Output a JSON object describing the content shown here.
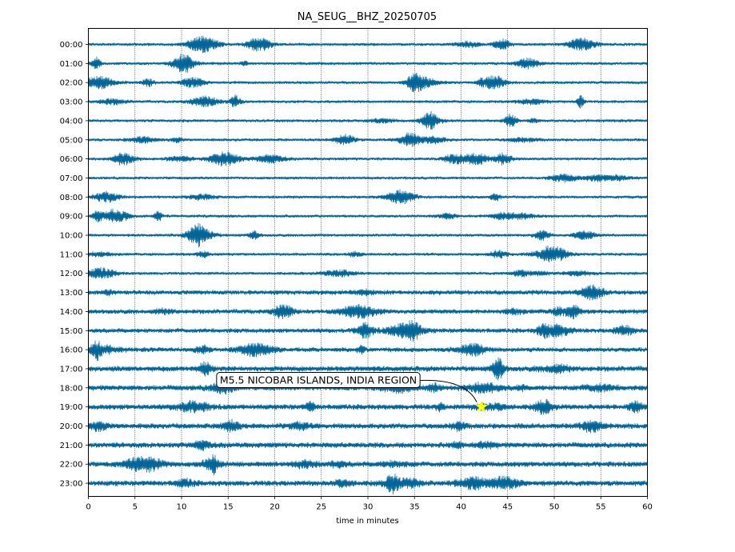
{
  "chart_data": {
    "type": "line",
    "title": "NA_SEUG__BHZ_20250705",
    "xlabel": "time in minutes",
    "ylabel": "",
    "xlim": [
      0,
      60
    ],
    "x_ticks": [
      0,
      5,
      10,
      15,
      20,
      25,
      30,
      35,
      40,
      45,
      50,
      55,
      60
    ],
    "grid": "vertical dotted lines at every 5 minutes",
    "trace_color": "#006699",
    "rows": [
      "00:00",
      "01:00",
      "02:00",
      "03:00",
      "04:00",
      "05:00",
      "06:00",
      "07:00",
      "08:00",
      "09:00",
      "10:00",
      "11:00",
      "12:00",
      "13:00",
      "14:00",
      "15:00",
      "16:00",
      "17:00",
      "18:00",
      "19:00",
      "20:00",
      "21:00",
      "22:00",
      "23:00"
    ],
    "annotation": {
      "text": "M5.5 NICOBAR ISLANDS, INDIA REGION",
      "marker": "star",
      "marker_color": "#ffff00",
      "row": "19:00",
      "minute": 42.2
    }
  }
}
